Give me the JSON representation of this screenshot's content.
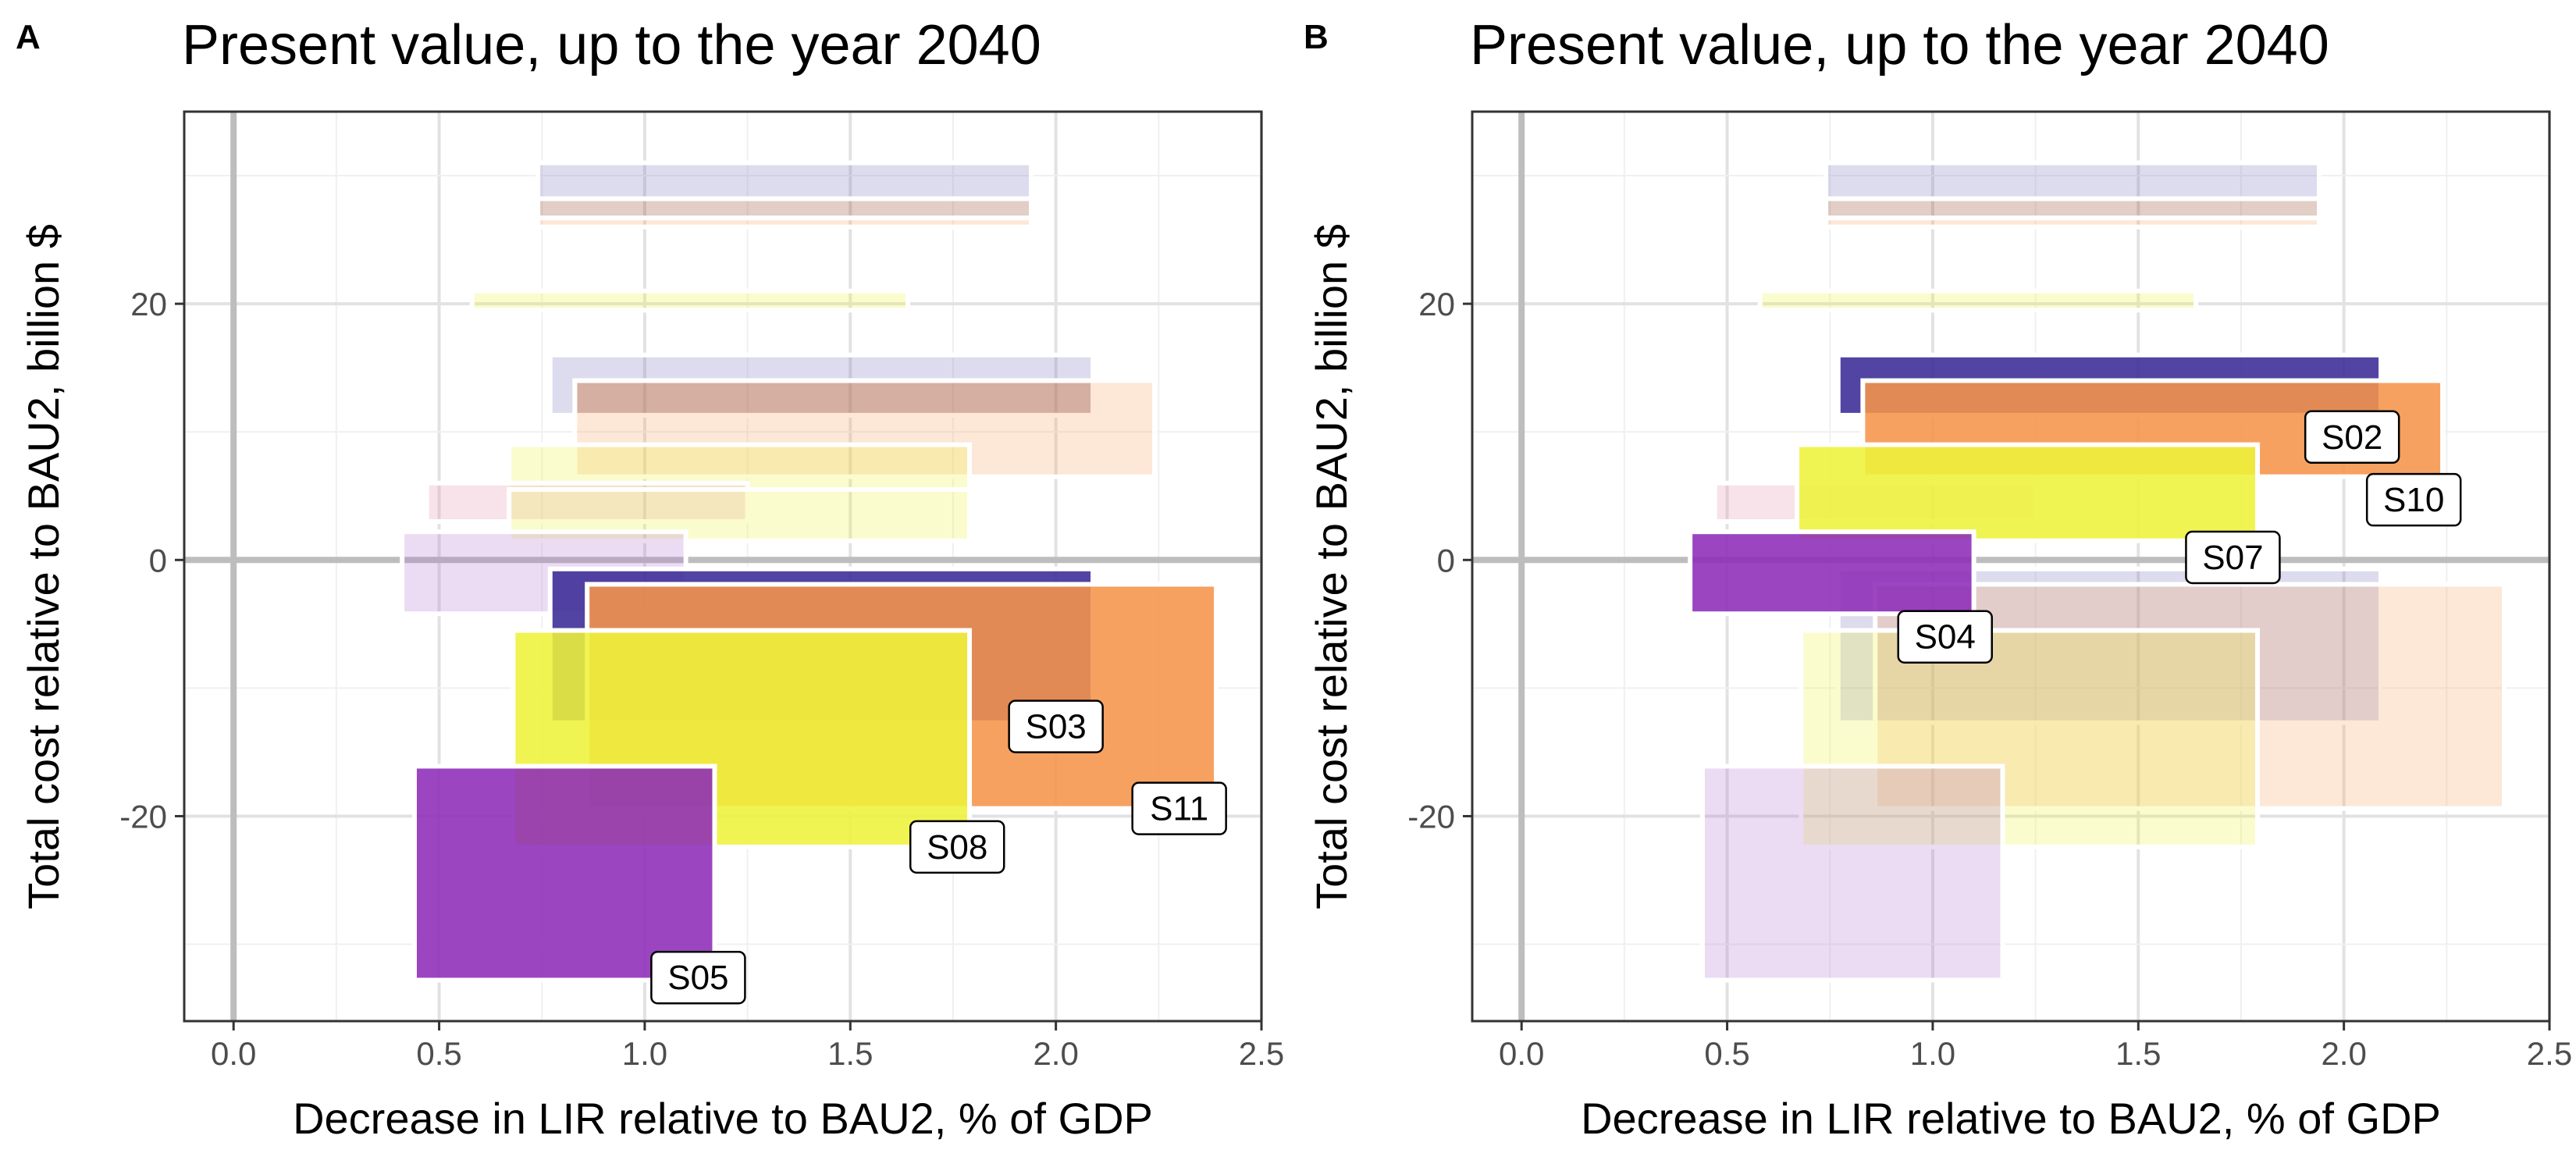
{
  "chart_data": [
    {
      "type": "rect-range",
      "panel_label": "A",
      "title": "Present value, up to the year 2040",
      "xlabel": "Decrease in LIR relative to BAU2, % of GDP",
      "ylabel": "Total cost relative to BAU2, billion $",
      "xlim": [
        -0.12,
        2.5
      ],
      "ylim": [
        -36,
        35
      ],
      "x_ticks": [
        "0.0",
        "0.5",
        "1.0",
        "1.5",
        "2.0",
        "2.5"
      ],
      "y_ticks": [
        "-20",
        "0",
        "20"
      ],
      "grid": true,
      "highlighted": [
        "S03",
        "S05",
        "S08",
        "S11"
      ],
      "scenarios": [
        {
          "name": "",
          "x": [
            0.74,
            1.94
          ],
          "y": [
            28.2,
            31.0
          ],
          "color": "#7474bb"
        },
        {
          "name": "",
          "x": [
            0.74,
            1.94
          ],
          "y": [
            26.7,
            28.2
          ],
          "color": "#8b3d1c"
        },
        {
          "name": "",
          "x": [
            0.74,
            1.94
          ],
          "y": [
            26.0,
            26.7
          ],
          "color": "#f8a060"
        },
        {
          "name": "",
          "x": [
            0.58,
            1.64
          ],
          "y": [
            19.5,
            21.0
          ],
          "color": "#eef23a"
        },
        {
          "name": "",
          "x": [
            0.77,
            2.09
          ],
          "y": [
            11.3,
            16.0
          ],
          "color": "#7474bb"
        },
        {
          "name": "",
          "x": [
            0.83,
            2.09
          ],
          "y": [
            11.3,
            14.0
          ],
          "color": "#8b3d1c"
        },
        {
          "name": "",
          "x": [
            0.83,
            2.24
          ],
          "y": [
            6.5,
            14.0
          ],
          "color": "#f8a060"
        },
        {
          "name": "",
          "x": [
            0.67,
            1.79
          ],
          "y": [
            5.5,
            9.0
          ],
          "color": "#eef23a"
        },
        {
          "name": "",
          "x": [
            0.47,
            1.25
          ],
          "y": [
            3.0,
            6.0
          ],
          "color": "#e090a8"
        },
        {
          "name": "",
          "x": [
            0.67,
            1.79
          ],
          "y": [
            1.5,
            5.5
          ],
          "color": "#eef23a"
        },
        {
          "name": "",
          "x": [
            0.41,
            1.1
          ],
          "y": [
            -4.2,
            2.2
          ],
          "color": "#b070d0"
        },
        {
          "name": "S03",
          "x": [
            0.77,
            2.09
          ],
          "y": [
            -12.7,
            -0.7
          ],
          "color": "#3a2a96",
          "label_pos": [
            2.0,
            -13.0
          ]
        },
        {
          "name": "S11",
          "x": [
            0.86,
            2.39
          ],
          "y": [
            -19.4,
            -1.9
          ],
          "color": "#f6944a",
          "label_pos": [
            2.3,
            -19.4
          ]
        },
        {
          "name": "S08",
          "x": [
            0.68,
            1.79
          ],
          "y": [
            -22.4,
            -5.5
          ],
          "color": "#eef23a",
          "label_pos": [
            1.76,
            -22.4
          ]
        },
        {
          "name": "S05",
          "x": [
            0.44,
            1.17
          ],
          "y": [
            -32.8,
            -16.1
          ],
          "color": "#8d2bb8",
          "label_pos": [
            1.13,
            -32.6
          ]
        }
      ]
    },
    {
      "type": "rect-range",
      "panel_label": "B",
      "title": "Present value, up to the year 2040",
      "xlabel": "Decrease in LIR relative to BAU2, % of GDP",
      "ylabel": "Total cost relative to BAU2, billion $",
      "xlim": [
        -0.12,
        2.5
      ],
      "ylim": [
        -36,
        35
      ],
      "x_ticks": [
        "0.0",
        "0.5",
        "1.0",
        "1.5",
        "2.0",
        "2.5"
      ],
      "y_ticks": [
        "-20",
        "0",
        "20"
      ],
      "grid": true,
      "highlighted": [
        "S02",
        "S04",
        "S07",
        "S10"
      ],
      "scenarios": [
        {
          "name": "",
          "x": [
            0.74,
            1.94
          ],
          "y": [
            28.2,
            31.0
          ],
          "color": "#7474bb"
        },
        {
          "name": "",
          "x": [
            0.74,
            1.94
          ],
          "y": [
            26.7,
            28.2
          ],
          "color": "#8b3d1c"
        },
        {
          "name": "",
          "x": [
            0.74,
            1.94
          ],
          "y": [
            26.0,
            26.7
          ],
          "color": "#f8a060"
        },
        {
          "name": "",
          "x": [
            0.58,
            1.64
          ],
          "y": [
            19.5,
            21.0
          ],
          "color": "#eef23a"
        },
        {
          "name": "",
          "x": [
            0.47,
            1.25
          ],
          "y": [
            3.0,
            6.0
          ],
          "color": "#e090a8"
        },
        {
          "name": "",
          "x": [
            0.77,
            2.09
          ],
          "y": [
            -12.7,
            -0.7
          ],
          "color": "#7474bb"
        },
        {
          "name": "",
          "x": [
            0.86,
            2.39
          ],
          "y": [
            -19.4,
            -1.9
          ],
          "color": "#f8a060"
        },
        {
          "name": "",
          "x": [
            0.68,
            1.79
          ],
          "y": [
            -22.4,
            -5.5
          ],
          "color": "#eef23a"
        },
        {
          "name": "",
          "x": [
            0.44,
            1.17
          ],
          "y": [
            -32.8,
            -16.1
          ],
          "color": "#b070d0"
        },
        {
          "name": "S02",
          "x": [
            0.77,
            2.09
          ],
          "y": [
            11.3,
            16.0
          ],
          "color": "#3a2a96",
          "label_pos": [
            2.02,
            9.6
          ]
        },
        {
          "name": "S10",
          "x": [
            0.83,
            2.24
          ],
          "y": [
            6.5,
            14.0
          ],
          "color": "#f6944a",
          "label_pos": [
            2.17,
            4.7
          ]
        },
        {
          "name": "S07",
          "x": [
            0.67,
            1.79
          ],
          "y": [
            1.5,
            9.0
          ],
          "color": "#eef23a",
          "label_pos": [
            1.73,
            0.2
          ]
        },
        {
          "name": "S04",
          "x": [
            0.41,
            1.1
          ],
          "y": [
            -4.2,
            2.2
          ],
          "color": "#8d2bb8",
          "label_pos": [
            1.03,
            -6.0
          ]
        }
      ]
    }
  ]
}
